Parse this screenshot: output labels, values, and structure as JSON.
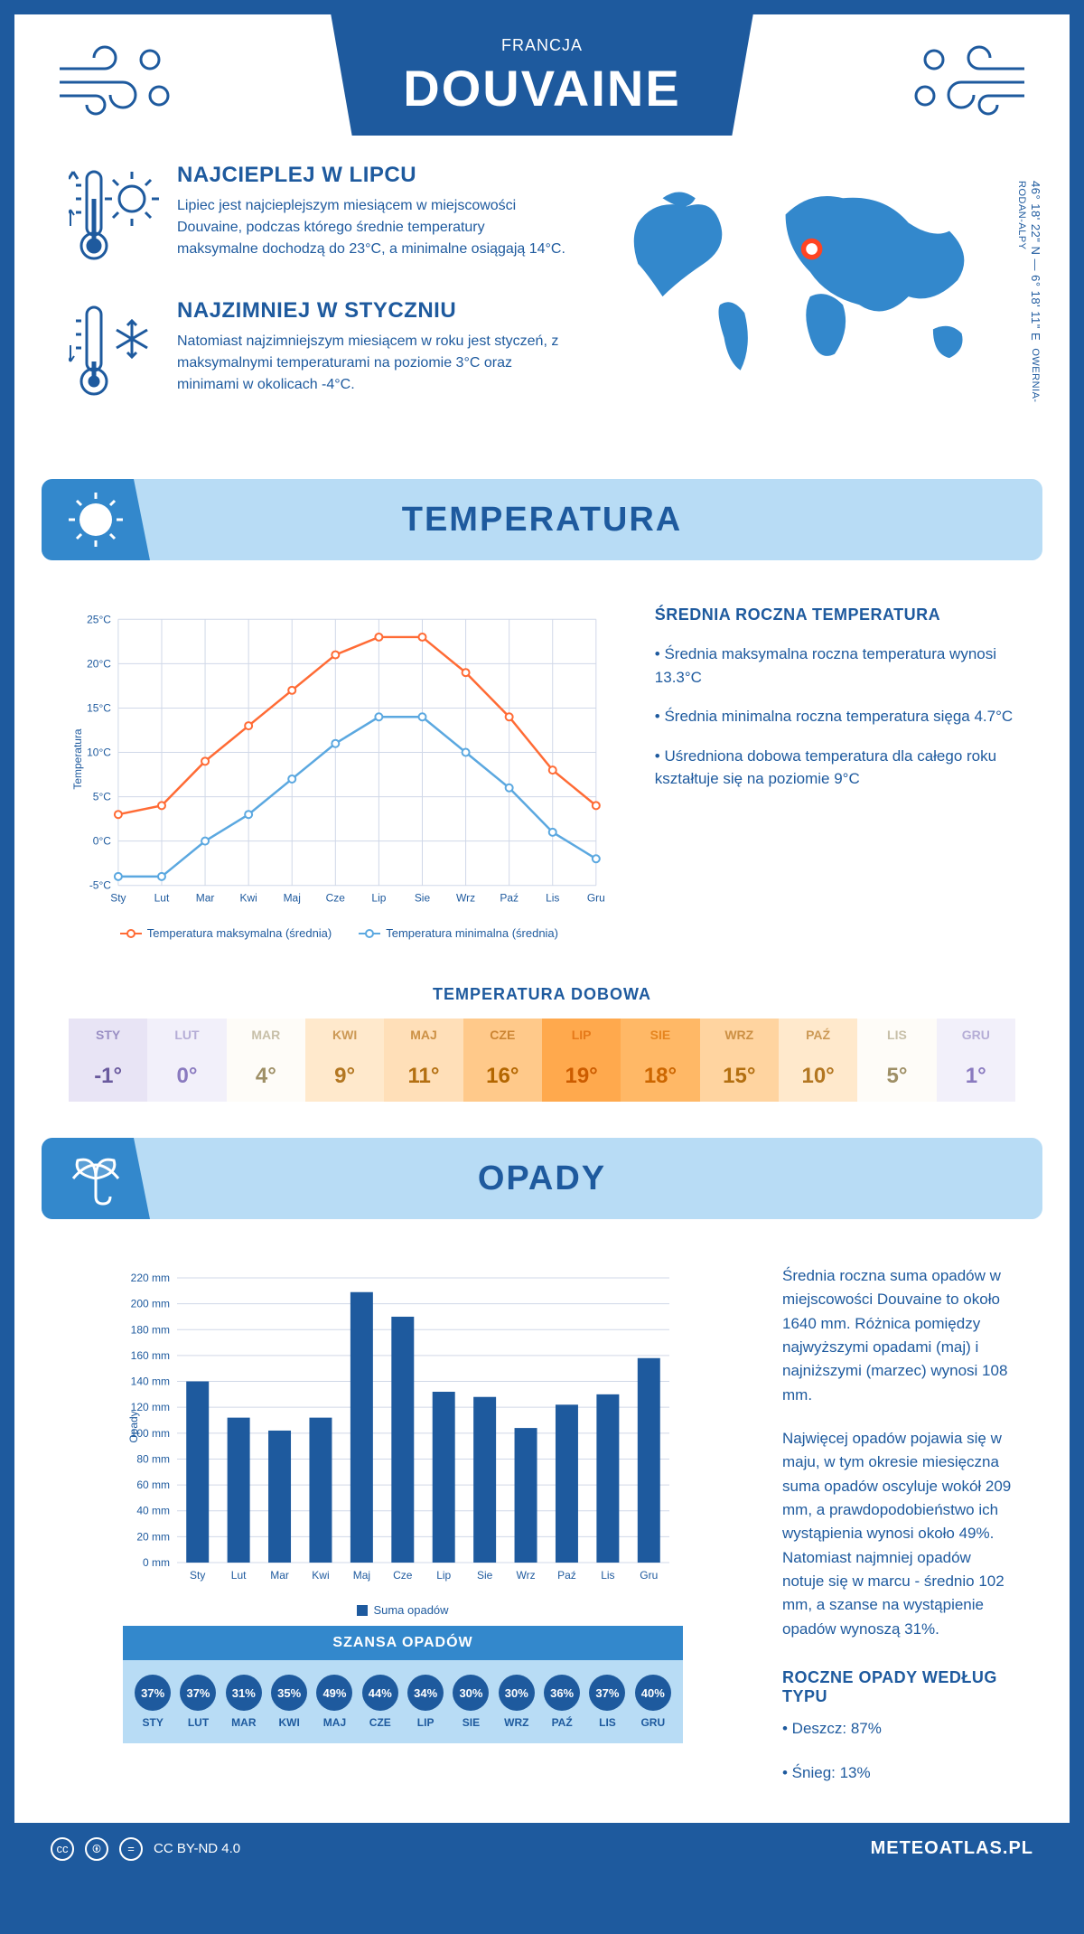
{
  "header": {
    "city": "DOUVAINE",
    "country": "FRANCJA"
  },
  "intro": {
    "hot": {
      "title": "NAJCIEPLEJ W LIPCU",
      "text": "Lipiec jest najcieplejszym miesiącem w miejscowości Douvaine, podczas którego średnie temperatury maksymalne dochodzą do 23°C, a minimalne osiągają 14°C."
    },
    "cold": {
      "title": "NAJZIMNIEJ W STYCZNIU",
      "text": "Natomiast najzimniejszym miesiącem w roku jest styczeń, z maksymalnymi temperaturami na poziomie 3°C oraz minimami w okolicach -4°C."
    },
    "coords": "46° 18' 22\" N — 6° 18' 11\" E",
    "region": "OWERNIA-RODAN-ALPY"
  },
  "temperature": {
    "banner": "TEMPERATURA",
    "side_title": "ŚREDNIA ROCZNA TEMPERATURA",
    "side_points": [
      "• Średnia maksymalna roczna temperatura wynosi 13.3°C",
      "• Średnia minimalna roczna temperatura sięga 4.7°C",
      "• Uśredniona dobowa temperatura dla całego roku kształtuje się na poziomie 9°C"
    ],
    "chart": {
      "type": "line",
      "months": [
        "Sty",
        "Lut",
        "Mar",
        "Kwi",
        "Maj",
        "Cze",
        "Lip",
        "Sie",
        "Wrz",
        "Paź",
        "Lis",
        "Gru"
      ],
      "max_series": [
        3,
        4,
        9,
        13,
        17,
        21,
        23,
        23,
        19,
        14,
        8,
        4
      ],
      "min_series": [
        -4,
        -4,
        0,
        3,
        7,
        11,
        14,
        14,
        10,
        6,
        1,
        -2
      ],
      "y_min": -5,
      "y_max": 25,
      "y_step": 5,
      "y_label": "Temperatura",
      "max_color": "#ff6b35",
      "min_color": "#5ba8e0",
      "grid_color": "#d0d8e8",
      "legend_max": "Temperatura maksymalna (średnia)",
      "legend_min": "Temperatura minimalna (średnia)"
    },
    "daily": {
      "title": "TEMPERATURA DOBOWA",
      "months": [
        "STY",
        "LUT",
        "MAR",
        "KWI",
        "MAJ",
        "CZE",
        "LIP",
        "SIE",
        "WRZ",
        "PAŹ",
        "LIS",
        "GRU"
      ],
      "values": [
        "-1°",
        "0°",
        "4°",
        "9°",
        "11°",
        "16°",
        "19°",
        "18°",
        "15°",
        "10°",
        "5°",
        "1°"
      ],
      "cell_bg": [
        "#e8e4f5",
        "#f2f0fa",
        "#fefcf8",
        "#ffe9cc",
        "#ffdfb8",
        "#ffc98a",
        "#ffa94d",
        "#ffb866",
        "#ffd4a0",
        "#ffe9cc",
        "#fefcf8",
        "#f2f0fa"
      ],
      "head_fg": [
        "#9a8fc4",
        "#b5add6",
        "#c7bfa8",
        "#cc9955",
        "#cc9044",
        "#cc8533",
        "#e67a1a",
        "#e6851f",
        "#cc9044",
        "#cc9955",
        "#c7bfa8",
        "#b5add6"
      ],
      "val_fg": [
        "#6a5a9e",
        "#8a7abf",
        "#9e8f66",
        "#b37722",
        "#b36f11",
        "#b36600",
        "#cc5c00",
        "#cc6600",
        "#b36f11",
        "#b37722",
        "#9e8f66",
        "#8a7abf"
      ]
    }
  },
  "precip": {
    "banner": "OPADY",
    "chart": {
      "type": "bar",
      "months": [
        "Sty",
        "Lut",
        "Mar",
        "Kwi",
        "Maj",
        "Cze",
        "Lip",
        "Sie",
        "Wrz",
        "Paź",
        "Lis",
        "Gru"
      ],
      "values": [
        140,
        112,
        102,
        112,
        209,
        190,
        132,
        128,
        104,
        122,
        130,
        158
      ],
      "y_min": 0,
      "y_max": 220,
      "y_step": 20,
      "y_label": "Opady",
      "bar_color": "#1e5a9e",
      "grid_color": "#d0d8e8",
      "legend": "Suma opadów"
    },
    "side_paras": [
      "Średnia roczna suma opadów w miejscowości Douvaine to około 1640 mm. Różnica pomiędzy najwyższymi opadami (maj) i najniższymi (marzec) wynosi 108 mm.",
      "Najwięcej opadów pojawia się w maju, w tym okresie miesięczna suma opadów oscyluje wokół 209 mm, a prawdopodobieństwo ich wystąpienia wynosi około 49%. Natomiast najmniej opadów notuje się w marcu - średnio 102 mm, a szanse na wystąpienie opadów wynoszą 31%."
    ],
    "by_type_title": "ROCZNE OPADY WEDŁUG TYPU",
    "by_type": [
      "• Deszcz: 87%",
      "• Śnieg: 13%"
    ],
    "chance": {
      "title": "SZANSA OPADÓW",
      "months": [
        "STY",
        "LUT",
        "MAR",
        "KWI",
        "MAJ",
        "CZE",
        "LIP",
        "SIE",
        "WRZ",
        "PAŹ",
        "LIS",
        "GRU"
      ],
      "values": [
        "37%",
        "37%",
        "31%",
        "35%",
        "49%",
        "44%",
        "34%",
        "30%",
        "30%",
        "36%",
        "37%",
        "40%"
      ]
    }
  },
  "footer": {
    "license": "CC BY-ND 4.0",
    "site": "METEOATLAS.PL"
  },
  "colors": {
    "primary": "#1e5a9e",
    "light_blue": "#b8dcf5",
    "mid_blue": "#3388cc"
  }
}
